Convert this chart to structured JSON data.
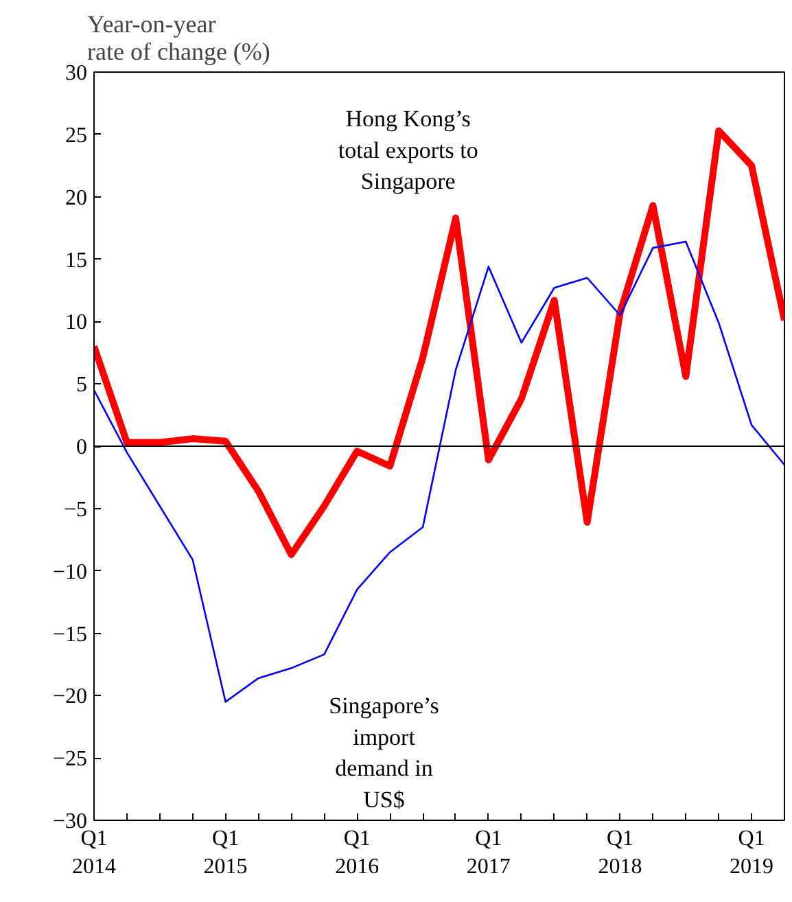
{
  "chart_data": {
    "type": "line",
    "ylabel": "Year-on-year\nrate of change (%)",
    "categories": [
      "Q1\n2014",
      null,
      null,
      null,
      "Q1\n2015",
      null,
      null,
      null,
      "Q1\n2016",
      null,
      null,
      null,
      "Q1\n2017",
      null,
      null,
      null,
      "Q1\n2018",
      null,
      null,
      null,
      "Q1\n2019",
      null
    ],
    "series": [
      {
        "name": "Hong Kong’s\ntotal exports to\nSingapore",
        "color": "#ff0000",
        "values": [
          8,
          0.3,
          0.3,
          0.6,
          0.4,
          -3.6,
          -8.7,
          -4.8,
          -0.4,
          -1.6,
          7.1,
          18.3,
          -1.1,
          3.8,
          11.7,
          -6.1,
          10.7,
          19.3,
          5.6,
          25.3,
          22.5,
          10.1
        ]
      },
      {
        "name": "Singapore’s\nimport\ndemand in\nUS$",
        "color": "#0000ff",
        "values": [
          4.5,
          -0.5,
          -4.8,
          -9.1,
          -20.5,
          -18.6,
          -17.8,
          -16.7,
          -11.5,
          -8.5,
          -6.5,
          6.1,
          14.4,
          8.3,
          12.7,
          13.5,
          10.5,
          15.9,
          16.4,
          9.9,
          1.7,
          -1.5
        ]
      }
    ],
    "ylim": [
      -30,
      30
    ],
    "yticks": [
      -30,
      -25,
      -20,
      -15,
      -10,
      -5,
      0,
      5,
      10,
      15,
      20,
      25,
      30
    ],
    "ref_lines": [
      {
        "axis": "y",
        "value": 0,
        "color": "#000000"
      }
    ],
    "grid": false
  }
}
